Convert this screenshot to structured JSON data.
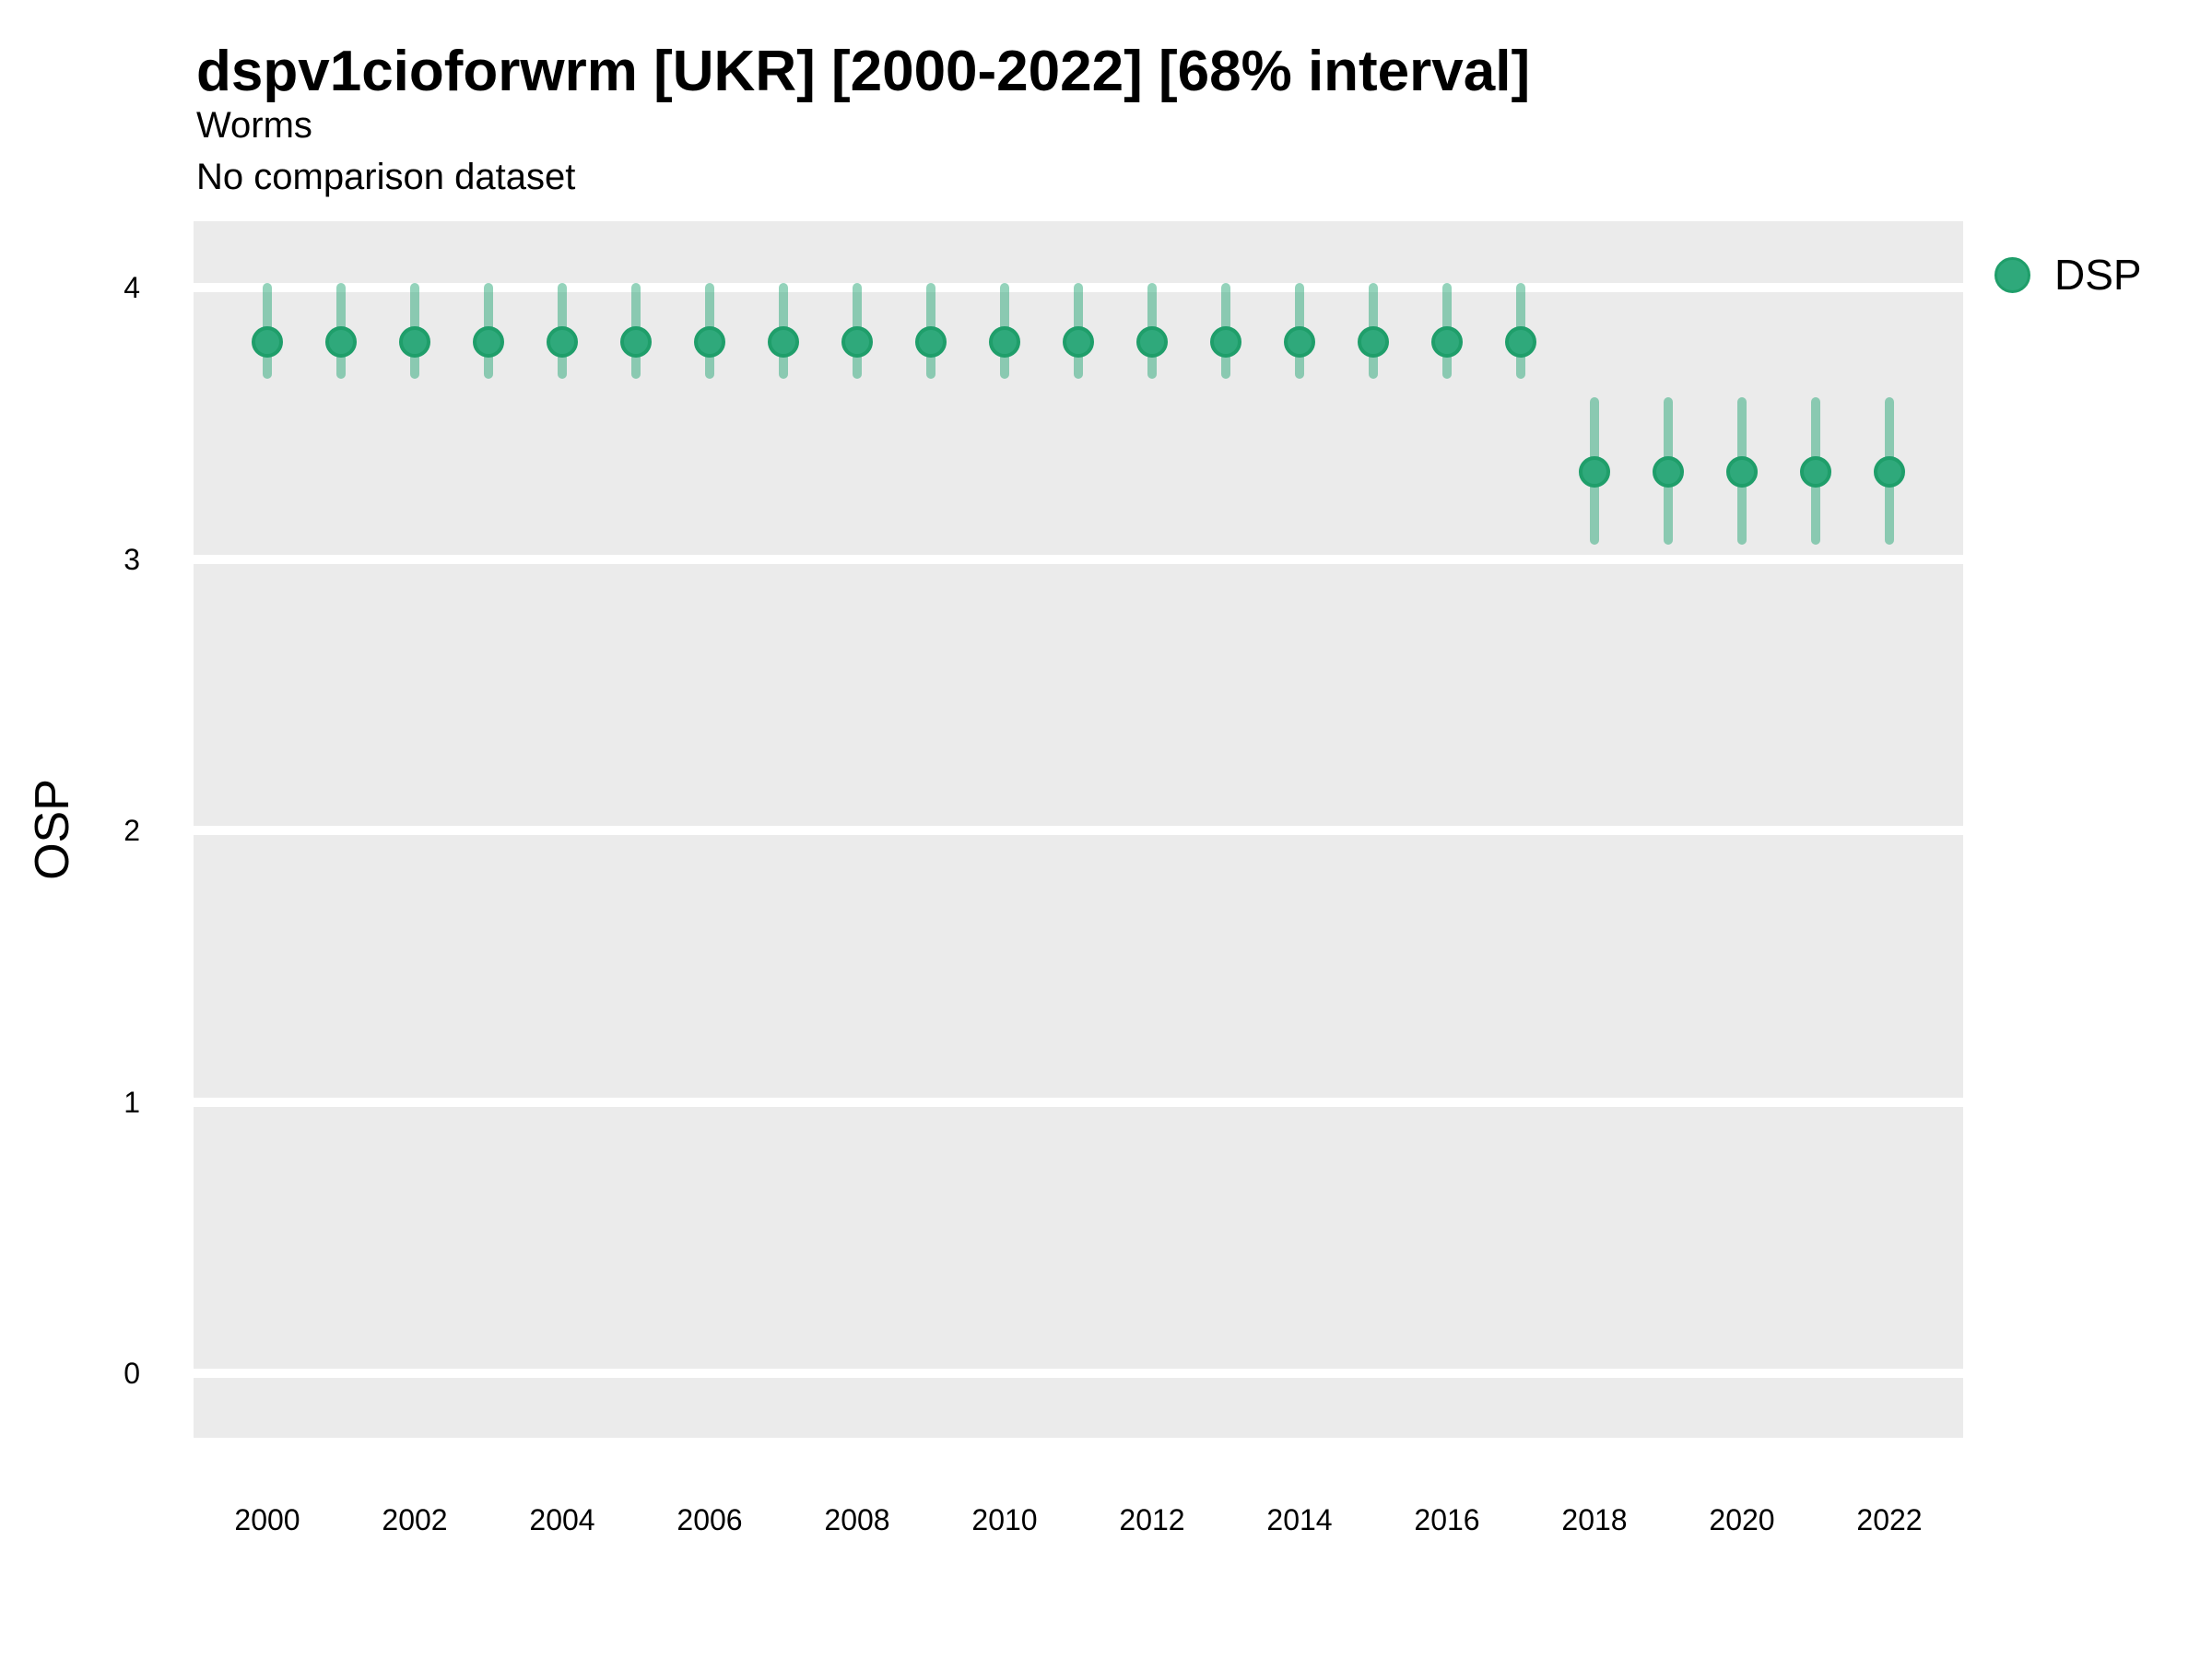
{
  "chart_data": {
    "type": "pointrange",
    "title": "dspv1cioforwrm [UKR] [2000-2022] [68% interval]",
    "subtitle_line1": "Worms",
    "subtitle_line2": "No comparison dataset",
    "xlabel": "",
    "ylabel": "OSP",
    "interval_label": "68% interval",
    "x_ticks": [
      2000,
      2002,
      2004,
      2006,
      2008,
      2010,
      2012,
      2014,
      2016,
      2018,
      2020,
      2022
    ],
    "y_ticks": [
      4,
      3,
      2,
      1,
      0
    ],
    "xlim": [
      1999,
      2023
    ],
    "ylim": [
      -0.24,
      4.25
    ],
    "grid": "horizontal-major-only",
    "legend": {
      "position": "right",
      "entries": [
        {
          "label": "DSP",
          "color": "#2fa97b"
        }
      ]
    },
    "series": [
      {
        "name": "DSP",
        "points": [
          {
            "year": 2000,
            "value": 3.8,
            "lower": 3.68,
            "upper": 4.0
          },
          {
            "year": 2001,
            "value": 3.8,
            "lower": 3.68,
            "upper": 4.0
          },
          {
            "year": 2002,
            "value": 3.8,
            "lower": 3.68,
            "upper": 4.0
          },
          {
            "year": 2003,
            "value": 3.8,
            "lower": 3.68,
            "upper": 4.0
          },
          {
            "year": 2004,
            "value": 3.8,
            "lower": 3.68,
            "upper": 4.0
          },
          {
            "year": 2005,
            "value": 3.8,
            "lower": 3.68,
            "upper": 4.0
          },
          {
            "year": 2006,
            "value": 3.8,
            "lower": 3.68,
            "upper": 4.0
          },
          {
            "year": 2007,
            "value": 3.8,
            "lower": 3.68,
            "upper": 4.0
          },
          {
            "year": 2008,
            "value": 3.8,
            "lower": 3.68,
            "upper": 4.0
          },
          {
            "year": 2009,
            "value": 3.8,
            "lower": 3.68,
            "upper": 4.0
          },
          {
            "year": 2010,
            "value": 3.8,
            "lower": 3.68,
            "upper": 4.0
          },
          {
            "year": 2011,
            "value": 3.8,
            "lower": 3.68,
            "upper": 4.0
          },
          {
            "year": 2012,
            "value": 3.8,
            "lower": 3.68,
            "upper": 4.0
          },
          {
            "year": 2013,
            "value": 3.8,
            "lower": 3.68,
            "upper": 4.0
          },
          {
            "year": 2014,
            "value": 3.8,
            "lower": 3.68,
            "upper": 4.0
          },
          {
            "year": 2015,
            "value": 3.8,
            "lower": 3.68,
            "upper": 4.0
          },
          {
            "year": 2016,
            "value": 3.8,
            "lower": 3.68,
            "upper": 4.0
          },
          {
            "year": 2017,
            "value": 3.8,
            "lower": 3.68,
            "upper": 4.0
          },
          {
            "year": 2018,
            "value": 3.32,
            "lower": 3.07,
            "upper": 3.58
          },
          {
            "year": 2019,
            "value": 3.32,
            "lower": 3.07,
            "upper": 3.58
          },
          {
            "year": 2020,
            "value": 3.32,
            "lower": 3.07,
            "upper": 3.58
          },
          {
            "year": 2021,
            "value": 3.32,
            "lower": 3.07,
            "upper": 3.58
          },
          {
            "year": 2022,
            "value": 3.32,
            "lower": 3.07,
            "upper": 3.58
          }
        ]
      }
    ]
  },
  "colors": {
    "background": "#ffffff",
    "panel_bg": "#ebebeb",
    "gridline": "#ffffff",
    "point_fill": "#2fa97b",
    "point_stroke": "#1f9e6a",
    "errorbar": "rgba(42, 167, 119, 0.5)",
    "text": "#000000"
  }
}
